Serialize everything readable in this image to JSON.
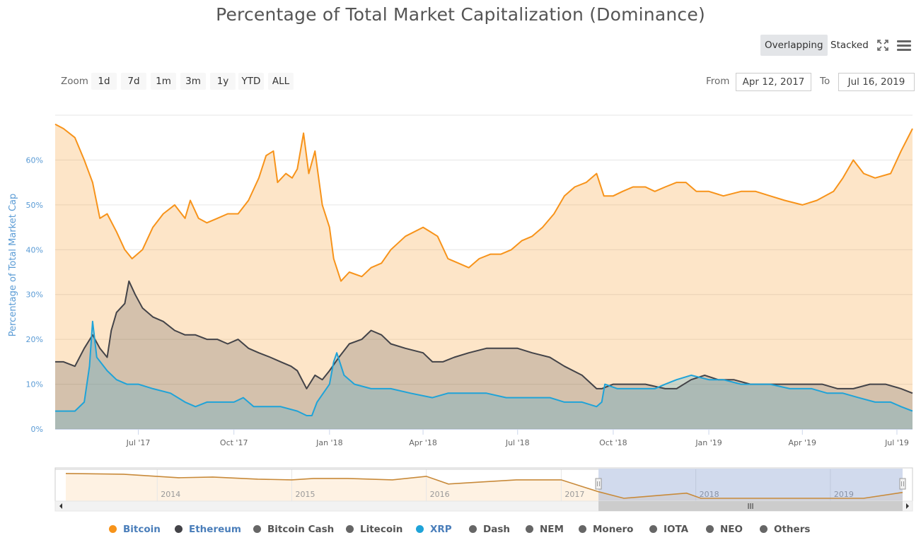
{
  "chart_data": {
    "type": "area",
    "title": "Percentage of Total Market Capitalization (Dominance)",
    "ylabel": "Percentage of Total Market Cap",
    "xlabel": "",
    "ylim": [
      0,
      70
    ],
    "y_ticks": [
      "0%",
      "10%",
      "20%",
      "30%",
      "40%",
      "50%",
      "60%"
    ],
    "x_range": [
      "2017-04-12",
      "2019-07-16"
    ],
    "x_ticks": [
      "Jul '17",
      "Oct '17",
      "Jan '18",
      "Apr '18",
      "Jul '18",
      "Oct '18",
      "Jan '19",
      "Apr '19",
      "Jul '19"
    ],
    "mode": "Overlapping",
    "series": [
      {
        "name": "Bitcoin",
        "color": "#f7931a",
        "points": [
          [
            "2017-04-12",
            68
          ],
          [
            "2017-04-20",
            67
          ],
          [
            "2017-05-01",
            65
          ],
          [
            "2017-05-10",
            60
          ],
          [
            "2017-05-18",
            55
          ],
          [
            "2017-05-25",
            47
          ],
          [
            "2017-06-01",
            48
          ],
          [
            "2017-06-10",
            44
          ],
          [
            "2017-06-18",
            40
          ],
          [
            "2017-06-25",
            38
          ],
          [
            "2017-07-05",
            40
          ],
          [
            "2017-07-15",
            45
          ],
          [
            "2017-07-25",
            48
          ],
          [
            "2017-08-05",
            50
          ],
          [
            "2017-08-15",
            47
          ],
          [
            "2017-08-20",
            51
          ],
          [
            "2017-08-28",
            47
          ],
          [
            "2017-09-05",
            46
          ],
          [
            "2017-09-15",
            47
          ],
          [
            "2017-09-25",
            48
          ],
          [
            "2017-10-05",
            48
          ],
          [
            "2017-10-15",
            51
          ],
          [
            "2017-10-25",
            56
          ],
          [
            "2017-11-01",
            61
          ],
          [
            "2017-11-08",
            62
          ],
          [
            "2017-11-12",
            55
          ],
          [
            "2017-11-20",
            57
          ],
          [
            "2017-11-26",
            56
          ],
          [
            "2017-12-01",
            58
          ],
          [
            "2017-12-07",
            66
          ],
          [
            "2017-12-12",
            57
          ],
          [
            "2017-12-18",
            62
          ],
          [
            "2017-12-25",
            50
          ],
          [
            "2018-01-01",
            45
          ],
          [
            "2018-01-05",
            38
          ],
          [
            "2018-01-12",
            33
          ],
          [
            "2018-01-20",
            35
          ],
          [
            "2018-02-01",
            34
          ],
          [
            "2018-02-10",
            36
          ],
          [
            "2018-02-20",
            37
          ],
          [
            "2018-03-01",
            40
          ],
          [
            "2018-03-15",
            43
          ],
          [
            "2018-04-01",
            45
          ],
          [
            "2018-04-08",
            44
          ],
          [
            "2018-04-15",
            43
          ],
          [
            "2018-04-25",
            38
          ],
          [
            "2018-05-05",
            37
          ],
          [
            "2018-05-15",
            36
          ],
          [
            "2018-05-25",
            38
          ],
          [
            "2018-06-05",
            39
          ],
          [
            "2018-06-15",
            39
          ],
          [
            "2018-06-25",
            40
          ],
          [
            "2018-07-05",
            42
          ],
          [
            "2018-07-15",
            43
          ],
          [
            "2018-07-25",
            45
          ],
          [
            "2018-08-05",
            48
          ],
          [
            "2018-08-15",
            52
          ],
          [
            "2018-08-25",
            54
          ],
          [
            "2018-09-05",
            55
          ],
          [
            "2018-09-15",
            57
          ],
          [
            "2018-09-22",
            52
          ],
          [
            "2018-10-01",
            52
          ],
          [
            "2018-10-10",
            53
          ],
          [
            "2018-10-20",
            54
          ],
          [
            "2018-11-01",
            54
          ],
          [
            "2018-11-10",
            53
          ],
          [
            "2018-11-20",
            54
          ],
          [
            "2018-12-01",
            55
          ],
          [
            "2018-12-10",
            55
          ],
          [
            "2018-12-20",
            53
          ],
          [
            "2019-01-01",
            53
          ],
          [
            "2019-01-15",
            52
          ],
          [
            "2019-02-01",
            53
          ],
          [
            "2019-02-15",
            53
          ],
          [
            "2019-03-01",
            52
          ],
          [
            "2019-03-15",
            51
          ],
          [
            "2019-04-01",
            50
          ],
          [
            "2019-04-15",
            51
          ],
          [
            "2019-05-01",
            53
          ],
          [
            "2019-05-10",
            56
          ],
          [
            "2019-05-20",
            60
          ],
          [
            "2019-05-30",
            57
          ],
          [
            "2019-06-10",
            56
          ],
          [
            "2019-06-25",
            57
          ],
          [
            "2019-07-05",
            62
          ],
          [
            "2019-07-16",
            67
          ]
        ]
      },
      {
        "name": "Ethereum",
        "color": "#434348",
        "points": [
          [
            "2017-04-12",
            15
          ],
          [
            "2017-04-20",
            15
          ],
          [
            "2017-05-01",
            14
          ],
          [
            "2017-05-10",
            18
          ],
          [
            "2017-05-18",
            21
          ],
          [
            "2017-05-25",
            18
          ],
          [
            "2017-06-01",
            16
          ],
          [
            "2017-06-05",
            22
          ],
          [
            "2017-06-10",
            26
          ],
          [
            "2017-06-18",
            28
          ],
          [
            "2017-06-22",
            33
          ],
          [
            "2017-06-28",
            30
          ],
          [
            "2017-07-05",
            27
          ],
          [
            "2017-07-15",
            25
          ],
          [
            "2017-07-25",
            24
          ],
          [
            "2017-08-05",
            22
          ],
          [
            "2017-08-15",
            21
          ],
          [
            "2017-08-25",
            21
          ],
          [
            "2017-09-05",
            20
          ],
          [
            "2017-09-15",
            20
          ],
          [
            "2017-09-25",
            19
          ],
          [
            "2017-10-05",
            20
          ],
          [
            "2017-10-15",
            18
          ],
          [
            "2017-10-25",
            17
          ],
          [
            "2017-11-05",
            16
          ],
          [
            "2017-11-15",
            15
          ],
          [
            "2017-11-25",
            14
          ],
          [
            "2017-12-01",
            13
          ],
          [
            "2017-12-10",
            9
          ],
          [
            "2017-12-18",
            12
          ],
          [
            "2017-12-25",
            11
          ],
          [
            "2018-01-01",
            13
          ],
          [
            "2018-01-10",
            16
          ],
          [
            "2018-01-20",
            19
          ],
          [
            "2018-02-01",
            20
          ],
          [
            "2018-02-10",
            22
          ],
          [
            "2018-02-20",
            21
          ],
          [
            "2018-03-01",
            19
          ],
          [
            "2018-03-15",
            18
          ],
          [
            "2018-04-01",
            17
          ],
          [
            "2018-04-10",
            15
          ],
          [
            "2018-04-20",
            15
          ],
          [
            "2018-05-01",
            16
          ],
          [
            "2018-05-15",
            17
          ],
          [
            "2018-06-01",
            18
          ],
          [
            "2018-06-15",
            18
          ],
          [
            "2018-07-01",
            18
          ],
          [
            "2018-07-15",
            17
          ],
          [
            "2018-08-01",
            16
          ],
          [
            "2018-08-15",
            14
          ],
          [
            "2018-09-01",
            12
          ],
          [
            "2018-09-15",
            9
          ],
          [
            "2018-09-20",
            9
          ],
          [
            "2018-10-01",
            10
          ],
          [
            "2018-10-15",
            10
          ],
          [
            "2018-11-01",
            10
          ],
          [
            "2018-11-20",
            9
          ],
          [
            "2018-12-01",
            9
          ],
          [
            "2018-12-15",
            11
          ],
          [
            "2018-12-28",
            12
          ],
          [
            "2019-01-10",
            11
          ],
          [
            "2019-01-25",
            11
          ],
          [
            "2019-02-10",
            10
          ],
          [
            "2019-03-01",
            10
          ],
          [
            "2019-03-20",
            10
          ],
          [
            "2019-04-05",
            10
          ],
          [
            "2019-04-20",
            10
          ],
          [
            "2019-05-05",
            9
          ],
          [
            "2019-05-20",
            9
          ],
          [
            "2019-06-05",
            10
          ],
          [
            "2019-06-20",
            10
          ],
          [
            "2019-07-05",
            9
          ],
          [
            "2019-07-16",
            8
          ]
        ]
      },
      {
        "name": "XRP",
        "color": "#1fa3d8",
        "points": [
          [
            "2017-04-12",
            4
          ],
          [
            "2017-04-20",
            4
          ],
          [
            "2017-05-01",
            4
          ],
          [
            "2017-05-10",
            6
          ],
          [
            "2017-05-15",
            14
          ],
          [
            "2017-05-18",
            24
          ],
          [
            "2017-05-22",
            16
          ],
          [
            "2017-06-01",
            13
          ],
          [
            "2017-06-10",
            11
          ],
          [
            "2017-06-20",
            10
          ],
          [
            "2017-07-01",
            10
          ],
          [
            "2017-07-15",
            9
          ],
          [
            "2017-08-01",
            8
          ],
          [
            "2017-08-15",
            6
          ],
          [
            "2017-08-25",
            5
          ],
          [
            "2017-09-05",
            6
          ],
          [
            "2017-09-15",
            6
          ],
          [
            "2017-10-01",
            6
          ],
          [
            "2017-10-10",
            7
          ],
          [
            "2017-10-20",
            5
          ],
          [
            "2017-11-01",
            5
          ],
          [
            "2017-11-15",
            5
          ],
          [
            "2017-12-01",
            4
          ],
          [
            "2017-12-10",
            3
          ],
          [
            "2017-12-15",
            3
          ],
          [
            "2017-12-20",
            6
          ],
          [
            "2018-01-01",
            10
          ],
          [
            "2018-01-05",
            15
          ],
          [
            "2018-01-08",
            17
          ],
          [
            "2018-01-15",
            12
          ],
          [
            "2018-01-25",
            10
          ],
          [
            "2018-02-10",
            9
          ],
          [
            "2018-03-01",
            9
          ],
          [
            "2018-03-20",
            8
          ],
          [
            "2018-04-10",
            7
          ],
          [
            "2018-04-25",
            8
          ],
          [
            "2018-05-10",
            8
          ],
          [
            "2018-06-01",
            8
          ],
          [
            "2018-06-20",
            7
          ],
          [
            "2018-07-05",
            7
          ],
          [
            "2018-08-01",
            7
          ],
          [
            "2018-08-15",
            6
          ],
          [
            "2018-09-01",
            6
          ],
          [
            "2018-09-15",
            5
          ],
          [
            "2018-09-20",
            6
          ],
          [
            "2018-09-23",
            10
          ],
          [
            "2018-10-05",
            9
          ],
          [
            "2018-10-20",
            9
          ],
          [
            "2018-11-10",
            9
          ],
          [
            "2018-11-20",
            10
          ],
          [
            "2018-12-01",
            11
          ],
          [
            "2018-12-15",
            12
          ],
          [
            "2019-01-01",
            11
          ],
          [
            "2019-01-15",
            11
          ],
          [
            "2019-02-01",
            10
          ],
          [
            "2019-02-15",
            10
          ],
          [
            "2019-03-01",
            10
          ],
          [
            "2019-03-20",
            9
          ],
          [
            "2019-04-10",
            9
          ],
          [
            "2019-04-25",
            8
          ],
          [
            "2019-05-10",
            8
          ],
          [
            "2019-05-25",
            7
          ],
          [
            "2019-06-10",
            6
          ],
          [
            "2019-06-25",
            6
          ],
          [
            "2019-07-05",
            5
          ],
          [
            "2019-07-16",
            4
          ]
        ]
      }
    ],
    "navigator": {
      "x_labels": [
        "2014",
        "2015",
        "2016",
        "2017",
        "2018",
        "2019"
      ],
      "x_range": [
        "2013-04-28",
        "2019-07-16"
      ],
      "selected_from": "2017-04-12",
      "selected_to": "2019-07-16",
      "bitcoin_points": [
        [
          "2013-04-28",
          94
        ],
        [
          "2013-10-01",
          93
        ],
        [
          "2014-03-01",
          88
        ],
        [
          "2014-06-01",
          89
        ],
        [
          "2014-10-01",
          86
        ],
        [
          "2015-01-01",
          85
        ],
        [
          "2015-03-01",
          87
        ],
        [
          "2015-06-01",
          87
        ],
        [
          "2015-10-01",
          85
        ],
        [
          "2016-01-01",
          90
        ],
        [
          "2016-03-01",
          79
        ],
        [
          "2016-06-01",
          82
        ],
        [
          "2016-09-01",
          85
        ],
        [
          "2017-01-01",
          85
        ],
        [
          "2017-03-01",
          75
        ],
        [
          "2017-04-12",
          68
        ],
        [
          "2017-06-20",
          38
        ],
        [
          "2017-12-07",
          66
        ],
        [
          "2018-01-15",
          33
        ],
        [
          "2018-04-01",
          45
        ],
        [
          "2018-05-15",
          36
        ],
        [
          "2018-09-15",
          57
        ],
        [
          "2018-12-20",
          53
        ],
        [
          "2019-04-01",
          50
        ],
        [
          "2019-07-16",
          67
        ]
      ]
    }
  },
  "toolbar": {
    "overlapping_label": "Overlapping",
    "stacked_label": "Stacked",
    "fullscreen_icon": "fullscreen-icon",
    "menu_icon": "hamburger-menu-icon"
  },
  "zoom": {
    "label": "Zoom",
    "buttons": [
      "1d",
      "7d",
      "1m",
      "3m",
      "1y",
      "YTD",
      "ALL"
    ]
  },
  "range": {
    "from_label": "From",
    "from_value": "Apr 12, 2017",
    "to_label": "To",
    "to_value": "Jul 16, 2019"
  },
  "legend": [
    {
      "label": "Bitcoin",
      "color": "#f7931a",
      "label_color": "#4a7eba",
      "active": true
    },
    {
      "label": "Ethereum",
      "color": "#434348",
      "label_color": "#4a7eba",
      "active": true
    },
    {
      "label": "Bitcoin Cash",
      "color": "#666666",
      "label_color": "#555555",
      "active": false
    },
    {
      "label": "Litecoin",
      "color": "#666666",
      "label_color": "#555555",
      "active": false
    },
    {
      "label": "XRP",
      "color": "#1fa3d8",
      "label_color": "#4a7eba",
      "active": true
    },
    {
      "label": "Dash",
      "color": "#666666",
      "label_color": "#555555",
      "active": false
    },
    {
      "label": "NEM",
      "color": "#666666",
      "label_color": "#555555",
      "active": false
    },
    {
      "label": "Monero",
      "color": "#666666",
      "label_color": "#555555",
      "active": false
    },
    {
      "label": "IOTA",
      "color": "#666666",
      "label_color": "#555555",
      "active": false
    },
    {
      "label": "NEO",
      "color": "#666666",
      "label_color": "#555555",
      "active": false
    },
    {
      "label": "Others",
      "color": "#666666",
      "label_color": "#555555",
      "active": false
    }
  ]
}
